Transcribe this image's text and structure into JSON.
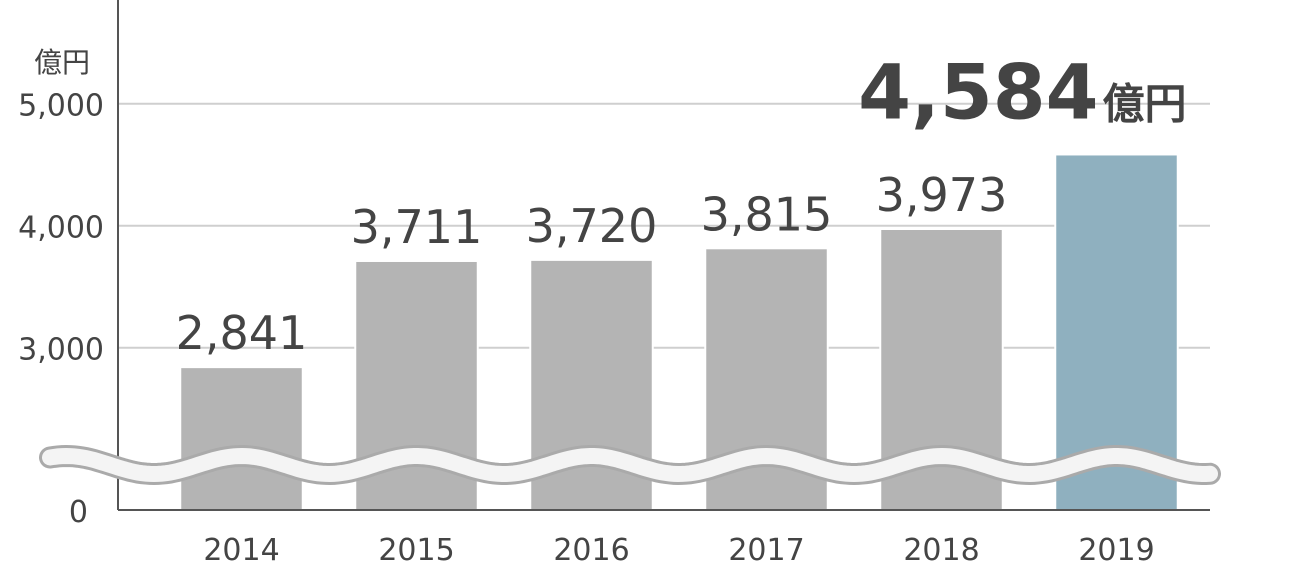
{
  "chart_data": {
    "type": "bar",
    "ylabel": "億円",
    "categories": [
      "2014",
      "2015",
      "2016",
      "2017",
      "2018",
      "2019"
    ],
    "values": [
      2841,
      3711,
      3720,
      3815,
      3973,
      4584
    ],
    "value_labels": [
      "2,841",
      "3,711",
      "3,720",
      "3,815",
      "3,973",
      "4,584"
    ],
    "colors": [
      "#b4b4b4",
      "#b4b4b4",
      "#b4b4b4",
      "#b4b4b4",
      "#b4b4b4",
      "#8fb0bf"
    ],
    "highlight_unit": "億円",
    "ylim": [
      0,
      5850
    ],
    "axis_break": [
      0,
      1670
    ],
    "yticks": [
      0,
      {
        "value": 3000,
        "label": "3,000"
      },
      {
        "value": 4000,
        "label": "4,000"
      },
      {
        "value": 5000,
        "label": "5,000"
      }
    ],
    "grid": true
  }
}
